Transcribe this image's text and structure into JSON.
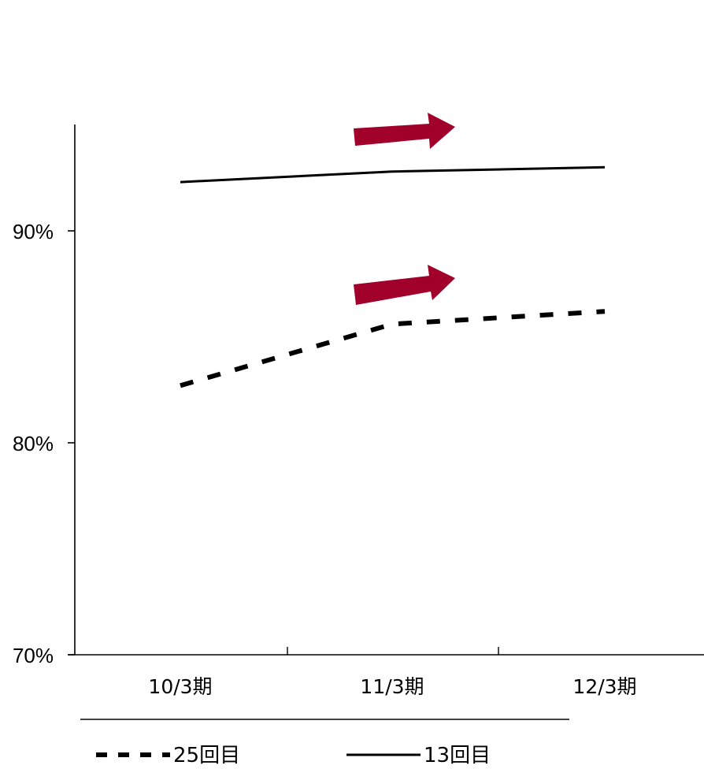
{
  "chart_data": {
    "type": "line",
    "categories": [
      "10/3期",
      "11/3期",
      "12/3期"
    ],
    "series": [
      {
        "name": "25回目",
        "values": [
          82.7,
          85.6,
          86.2
        ],
        "style": "dashed",
        "color": "#000000"
      },
      {
        "name": "13回目",
        "values": [
          92.3,
          92.8,
          93.0
        ],
        "style": "solid",
        "color": "#000000"
      }
    ],
    "ylim": [
      70,
      95
    ],
    "yticks": [
      70,
      80,
      90
    ],
    "ytick_labels": [
      "70%",
      "80%",
      "90%"
    ],
    "title": "",
    "xlabel": "",
    "ylabel": "",
    "grid": false,
    "legend_position": "bottom",
    "annotations": [
      {
        "type": "arrow",
        "color": "#a0002a",
        "direction": "right",
        "near_series": "13回目"
      },
      {
        "type": "arrow",
        "color": "#a0002a",
        "direction": "right",
        "near_series": "25回目"
      }
    ]
  }
}
